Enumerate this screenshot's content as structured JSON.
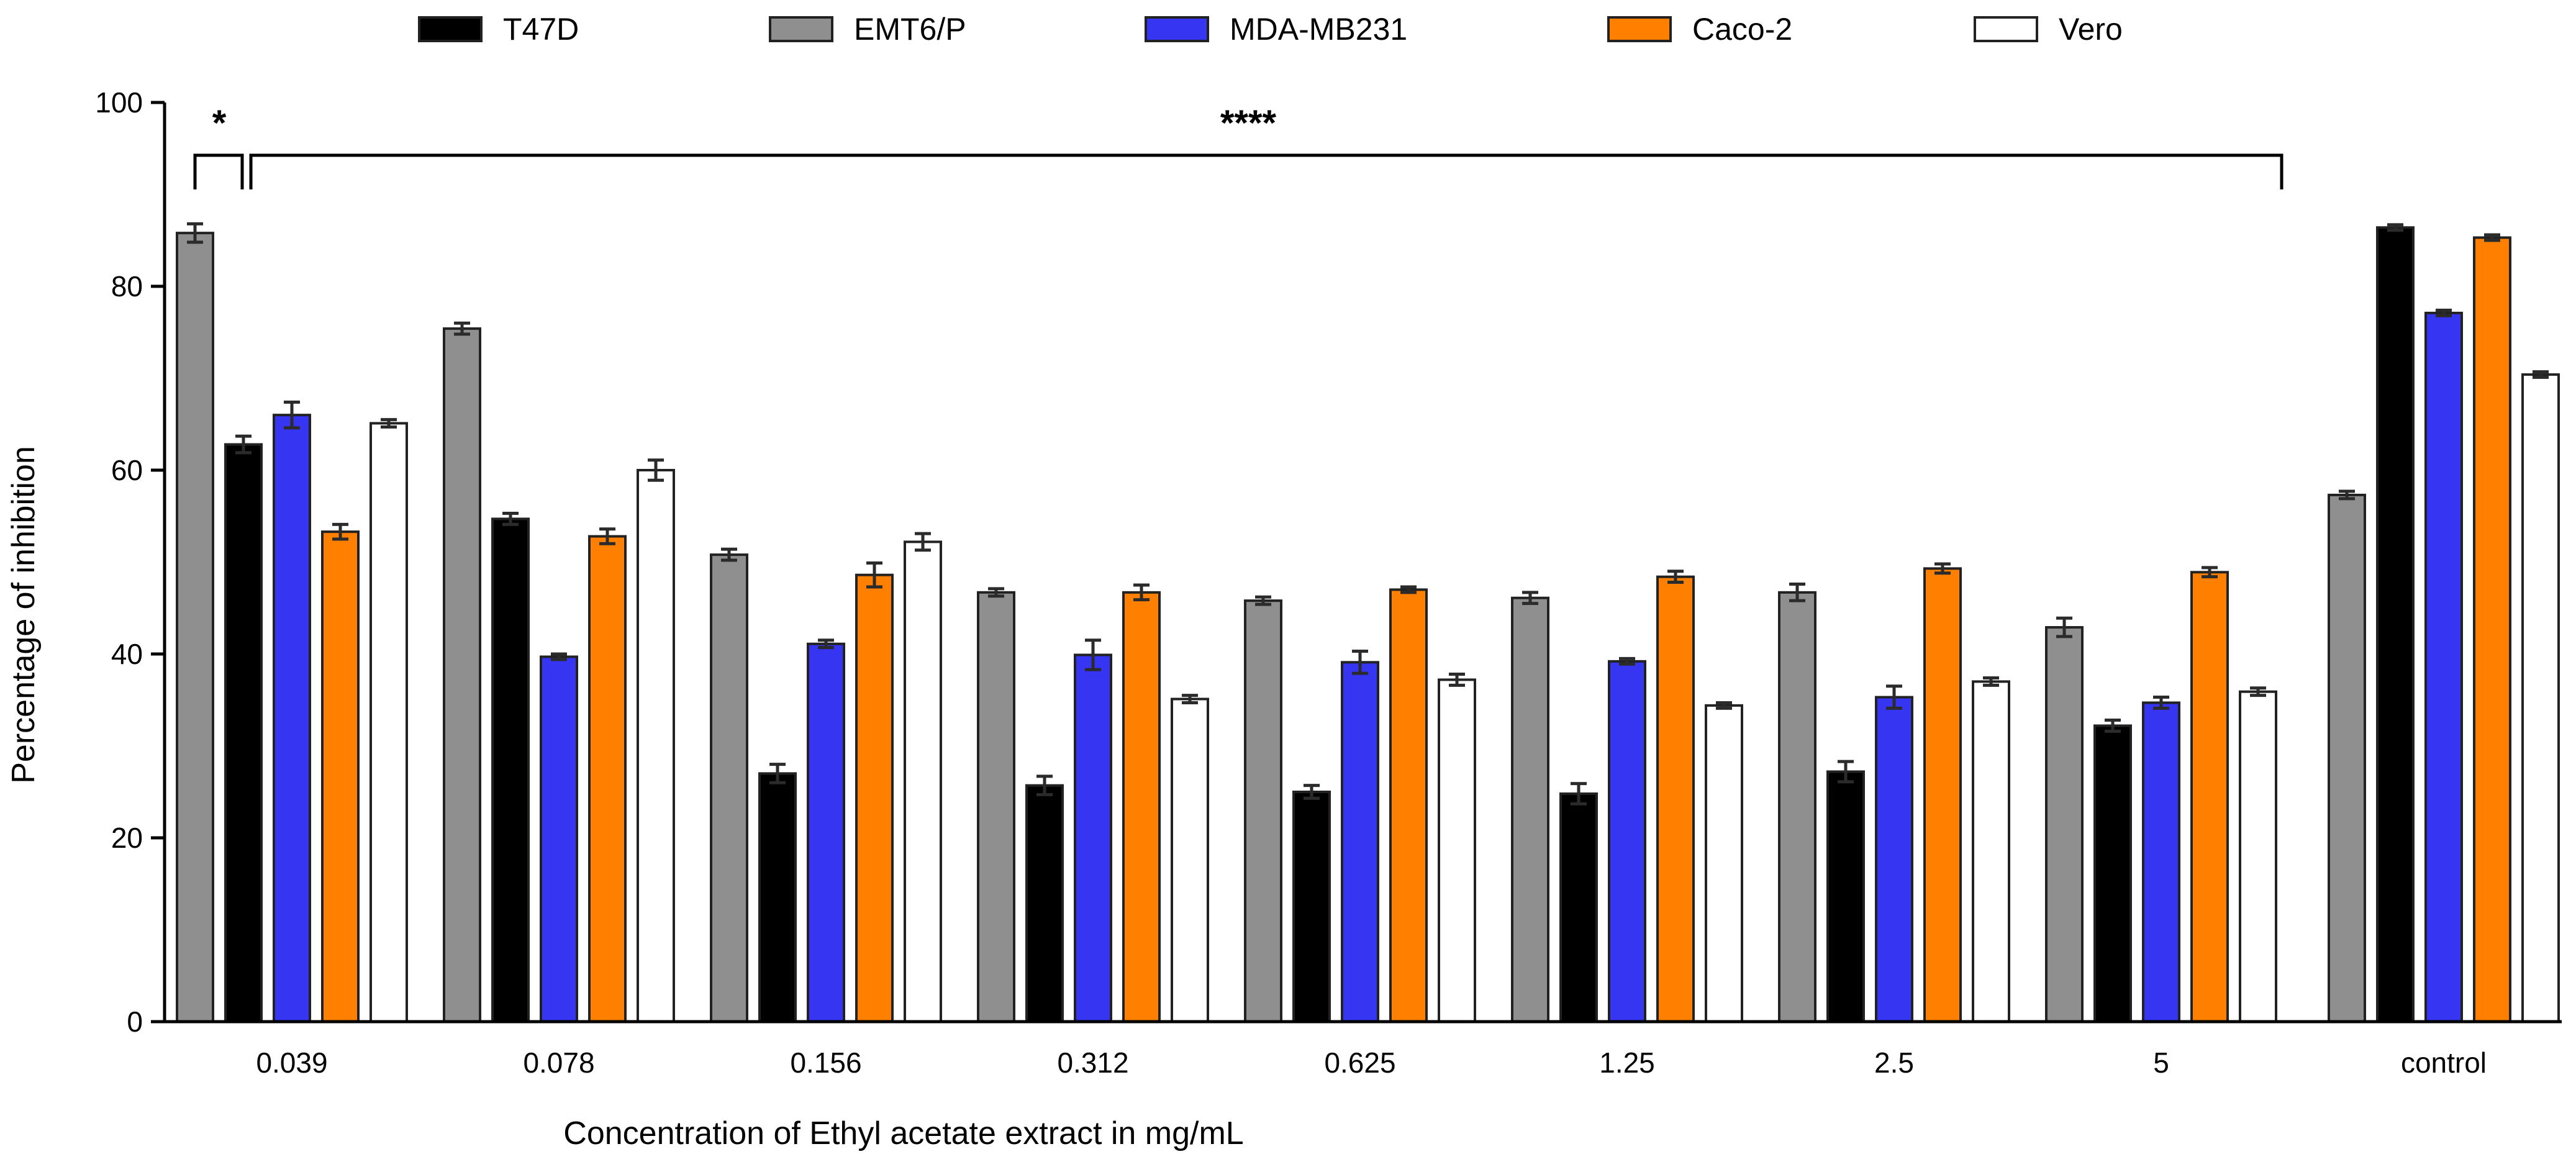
{
  "chart_data": {
    "type": "bar",
    "title": "",
    "xlabel": "Concentration of Ethyl acetate extract in mg/mL",
    "ylabel": "Percentage of inhibition",
    "ylim": [
      0,
      100
    ],
    "yticks": [
      0,
      20,
      40,
      60,
      80,
      100
    ],
    "categories": [
      "0.039",
      "0.078",
      "0.156",
      "0.312",
      "0.625",
      "1.25",
      "2.5",
      "5",
      "control"
    ],
    "series": [
      {
        "name": "EMT6/P",
        "color": "#8f8f8f",
        "values": [
          85.8,
          75.4,
          50.8,
          46.7,
          45.8,
          46.1,
          46.7,
          42.9,
          57.3
        ],
        "errors": [
          1.0,
          0.6,
          0.6,
          0.4,
          0.4,
          0.6,
          0.9,
          1.0,
          0.4
        ]
      },
      {
        "name": "T47D",
        "color": "#000000",
        "values": [
          62.8,
          54.7,
          27.0,
          25.7,
          25.0,
          24.8,
          27.2,
          32.2,
          86.4
        ],
        "errors": [
          0.9,
          0.6,
          1.0,
          1.0,
          0.7,
          1.1,
          1.1,
          0.6,
          0.3
        ]
      },
      {
        "name": "MDA-MB231",
        "color": "#3535f2",
        "values": [
          66.0,
          39.7,
          41.1,
          39.9,
          39.1,
          39.2,
          35.3,
          34.7,
          77.1
        ],
        "errors": [
          1.4,
          0.3,
          0.4,
          1.6,
          1.2,
          0.3,
          1.2,
          0.6,
          0.3
        ]
      },
      {
        "name": "Caco-2",
        "color": "#ff8000",
        "values": [
          53.3,
          52.8,
          48.6,
          46.7,
          47.0,
          48.4,
          49.3,
          48.9,
          85.3
        ],
        "errors": [
          0.8,
          0.8,
          1.3,
          0.8,
          0.3,
          0.6,
          0.5,
          0.5,
          0.3
        ]
      },
      {
        "name": "Vero",
        "color": "#ffffff",
        "values": [
          65.1,
          60.0,
          52.2,
          35.1,
          37.2,
          34.4,
          37.0,
          35.9,
          70.4
        ],
        "errors": [
          0.4,
          1.1,
          0.9,
          0.4,
          0.6,
          0.3,
          0.4,
          0.4,
          0.3
        ]
      }
    ],
    "legend": {
      "position": "top",
      "order": [
        "T47D",
        "EMT6/P",
        "MDA-MB231",
        "Caco-2",
        "Vero"
      ]
    },
    "annotations": [
      {
        "label": "*",
        "span": "0.039 EMT6/P to 0.039 T47D"
      },
      {
        "label": "****",
        "span": "0.039 T47D to 5 Vero"
      }
    ]
  }
}
